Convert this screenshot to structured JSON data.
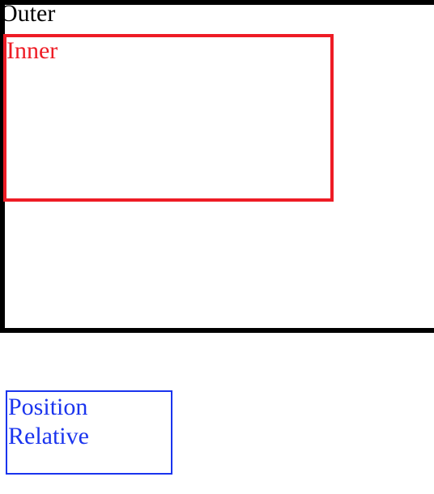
{
  "outer": {
    "label": "Outer",
    "border_color": "#000000"
  },
  "inner": {
    "label": "Inner",
    "border_color": "#ee1c25"
  },
  "relative_box": {
    "label": "Position Relative",
    "border_color": "#1a34ee"
  }
}
